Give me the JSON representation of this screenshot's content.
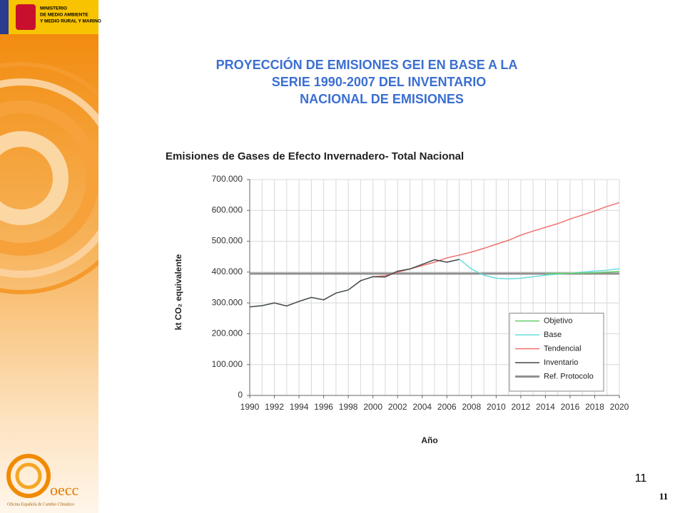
{
  "header": {
    "ministry": [
      "MINISTERIO",
      "DE MEDIO AMBIENTE",
      "Y MEDIO RURAL Y MARINO"
    ]
  },
  "slide_title": [
    "PROYECCIÓN DE EMISIONES GEI EN BASE A LA",
    "SERIE 1990-2007 DEL INVENTARIO",
    "NACIONAL DE EMISIONES"
  ],
  "footer": {
    "logo": "oecc",
    "office": "Oficina Española de Cambio Climático",
    "page_number": "11",
    "page_number_small": "11"
  },
  "chart_data": {
    "type": "line",
    "title": "Emisiones de Gases de Efecto Invernadero- Total Nacional",
    "x_label": "Año",
    "y_label": "kt CO₂ equivalente",
    "x": [
      1990,
      1991,
      1992,
      1993,
      1994,
      1995,
      1996,
      1997,
      1998,
      1999,
      2000,
      2001,
      2002,
      2003,
      2004,
      2005,
      2006,
      2007,
      2008,
      2009,
      2010,
      2011,
      2012,
      2013,
      2014,
      2015,
      2016,
      2017,
      2018,
      2019,
      2020
    ],
    "xlim": [
      1990,
      2020
    ],
    "xticks": [
      1990,
      1992,
      1994,
      1996,
      1998,
      2000,
      2002,
      2004,
      2006,
      2008,
      2010,
      2012,
      2014,
      2016,
      2018,
      2020
    ],
    "ylim": [
      0,
      700000
    ],
    "yticks": [
      0,
      {
        "value": 100000,
        "label": "100.000"
      },
      {
        "value": 200000,
        "label": "200.000"
      },
      {
        "value": 300000,
        "label": "300.000"
      },
      {
        "value": 400000,
        "label": "400.000"
      },
      {
        "value": 500000,
        "label": "500.000"
      },
      {
        "value": 600000,
        "label": "600.000"
      },
      {
        "value": 700000,
        "label": "700.000"
      }
    ],
    "grid": true,
    "legend": "lower right",
    "series": [
      {
        "name": "Objetivo",
        "color": "#66cc66",
        "line_width": 1.5,
        "values": [
          null,
          null,
          null,
          null,
          null,
          null,
          null,
          null,
          null,
          null,
          null,
          null,
          null,
          null,
          null,
          null,
          null,
          null,
          null,
          null,
          null,
          null,
          null,
          null,
          395000,
          395000,
          396000,
          397000,
          398000,
          400000,
          402000
        ]
      },
      {
        "name": "Base",
        "color": "#66dddd",
        "line_width": 1.5,
        "values": [
          null,
          null,
          null,
          null,
          null,
          null,
          null,
          null,
          null,
          null,
          null,
          null,
          null,
          null,
          null,
          null,
          null,
          442000,
          410000,
          390000,
          380000,
          378000,
          380000,
          385000,
          390000,
          393000,
          396000,
          400000,
          403000,
          406000,
          411000
        ]
      },
      {
        "name": "Tendencial",
        "color": "#f07070",
        "line_width": 1.5,
        "values": [
          null,
          null,
          null,
          null,
          null,
          null,
          null,
          null,
          null,
          null,
          385000,
          388000,
          400000,
          410000,
          421000,
          432000,
          446000,
          455000,
          465000,
          477000,
          490000,
          503000,
          520000,
          533000,
          545000,
          557000,
          572000,
          585000,
          598000,
          613000,
          625000
        ]
      },
      {
        "name": "Inventario",
        "color": "#404848",
        "line_width": 1.5,
        "values": [
          287000,
          291000,
          300000,
          290000,
          305000,
          318000,
          310000,
          332000,
          342000,
          372000,
          385000,
          384000,
          403000,
          410000,
          425000,
          440000,
          432000,
          441000,
          null,
          null,
          null,
          null,
          null,
          null,
          null,
          null,
          null,
          null,
          null,
          null,
          null
        ]
      },
      {
        "name": "Ref. Protocolo",
        "color": "#909090",
        "line_width": 3,
        "values": [
          395000,
          395000,
          395000,
          395000,
          395000,
          395000,
          395000,
          395000,
          395000,
          395000,
          395000,
          395000,
          395000,
          395000,
          395000,
          395000,
          395000,
          395000,
          395000,
          395000,
          395000,
          395000,
          395000,
          395000,
          395000,
          395000,
          395000,
          395000,
          395000,
          395000,
          395000
        ]
      }
    ]
  }
}
